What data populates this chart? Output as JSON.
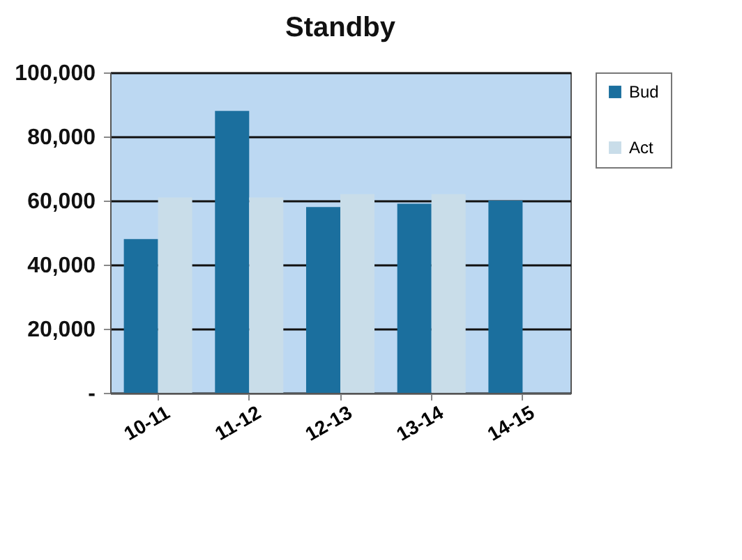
{
  "chart_data": {
    "type": "bar",
    "title": "Standby",
    "categories": [
      "10-11",
      "11-12",
      "12-13",
      "13-14",
      "14-15"
    ],
    "series": [
      {
        "name": "Bud",
        "color": "#1b6f9e",
        "values": [
          48000,
          88000,
          58000,
          59000,
          60000
        ]
      },
      {
        "name": "Act",
        "color": "#c9dde9",
        "values": [
          61000,
          61000,
          62000,
          62000,
          null
        ]
      }
    ],
    "ylim": [
      0,
      100000
    ],
    "yticks": [
      {
        "value": 0,
        "label": "-"
      },
      {
        "value": 20000,
        "label": "20,000"
      },
      {
        "value": 40000,
        "label": "40,000"
      },
      {
        "value": 60000,
        "label": "60,000"
      },
      {
        "value": 80000,
        "label": "80,000"
      },
      {
        "value": 100000,
        "label": "100,000"
      }
    ],
    "grid": "y",
    "legend": "right"
  }
}
